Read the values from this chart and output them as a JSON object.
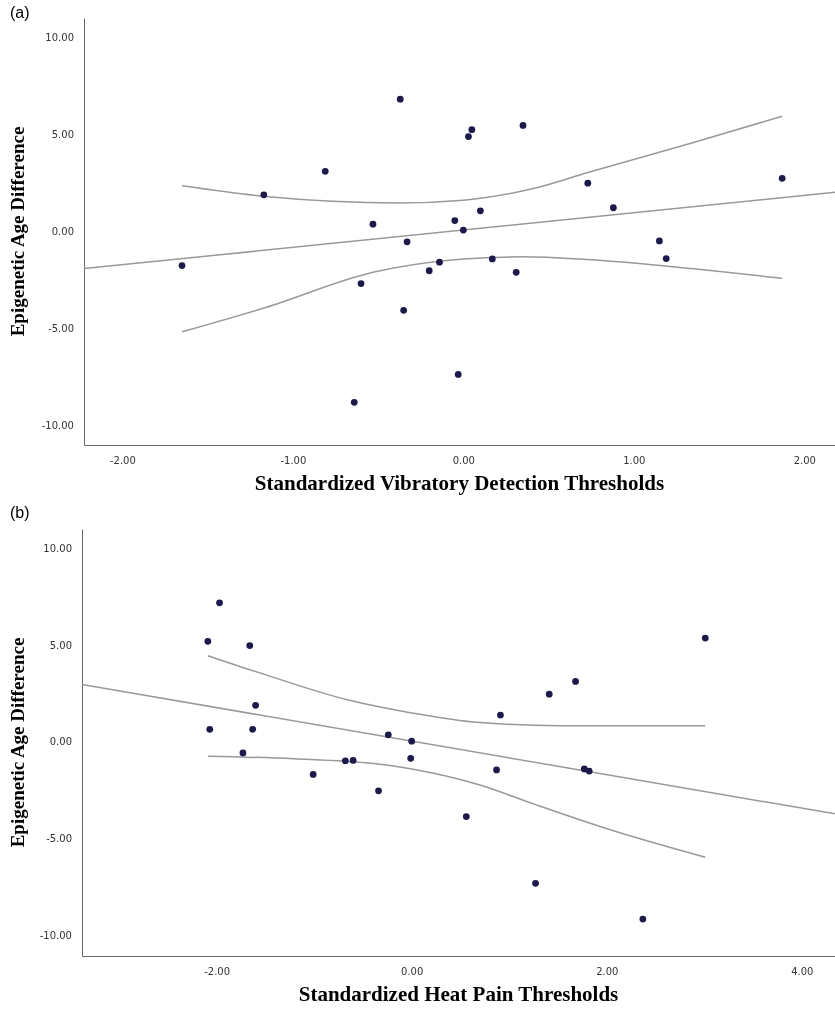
{
  "chart_data": [
    {
      "type": "scatter",
      "title": "(a)",
      "xlabel": "Standardized Vibratory Detection Thresholds",
      "ylabel": "Epigenetic Age Difference",
      "xlim": [
        -2.225,
        2.18
      ],
      "ylim": [
        -11.03,
        11.0
      ],
      "xticks": [
        {
          "value": -2,
          "label": "-2.00"
        },
        {
          "value": -1,
          "label": "-1.00"
        },
        {
          "value": 0,
          "label": "0.00"
        },
        {
          "value": 1,
          "label": "1.00"
        },
        {
          "value": 2,
          "label": "2.00"
        }
      ],
      "yticks": [
        {
          "value": -10,
          "label": "-10.00"
        },
        {
          "value": -5,
          "label": "-5.00"
        },
        {
          "value": 0,
          "label": "0.00"
        },
        {
          "value": 5,
          "label": "5.00"
        },
        {
          "value": 10,
          "label": "10.00"
        }
      ],
      "grid": false,
      "series": [
        {
          "marker": "circle",
          "color": "#1c1a4a",
          "x": [
            -1.65,
            -1.17,
            -0.81,
            -0.53,
            -0.64,
            -0.6,
            -0.37,
            -0.35,
            -0.33,
            -0.2,
            -0.14,
            -0.05,
            -0.03,
            0.0,
            0.03,
            0.05,
            0.1,
            0.17,
            0.31,
            0.35,
            0.73,
            0.88,
            1.15,
            1.19,
            1.87
          ],
          "values": [
            -1.77,
            1.88,
            3.09,
            0.36,
            -8.83,
            -2.7,
            6.81,
            -4.08,
            -0.55,
            -2.04,
            -1.6,
            0.55,
            -7.39,
            0.06,
            4.88,
            5.24,
            1.05,
            -1.43,
            -2.12,
            5.46,
            2.48,
            1.21,
            -0.5,
            -1.41,
            2.73
          ]
        },
        {
          "type": "line",
          "color": "#999999",
          "line_style": "solid",
          "x": [
            -2.225,
            2.18
          ],
          "values": [
            -1.93,
            2.01
          ]
        },
        {
          "type": "line",
          "color": "#999999",
          "line_style": "solid",
          "x": [
            -1.65,
            -1.16,
            -0.375,
            0,
            0.41,
            0.73,
            1.34,
            1.87
          ],
          "values": [
            2.34,
            1.79,
            1.46,
            1.6,
            2.2,
            3.03,
            4.55,
            5.93
          ]
        },
        {
          "type": "line",
          "color": "#999999",
          "line_style": "solid",
          "x": [
            -1.65,
            -1.16,
            -0.53,
            0,
            0.34,
            0.73,
            1.34,
            1.87
          ],
          "values": [
            -5.19,
            -3.94,
            -2.12,
            -1.43,
            -1.32,
            -1.46,
            -1.93,
            -2.43
          ]
        }
      ]
    },
    {
      "type": "scatter",
      "title": "(b)",
      "xlabel": "Standardized Heat Pain Thresholds",
      "ylabel": "Epigenetic Age Difference",
      "xlim": [
        -3.38,
        4.34
      ],
      "ylim": [
        -11.08,
        11.0
      ],
      "xticks": [
        {
          "value": -2,
          "label": "-2.00"
        },
        {
          "value": 0,
          "label": "0.00"
        },
        {
          "value": 2,
          "label": "2.00"
        },
        {
          "value": 4,
          "label": "4.00"
        }
      ],
      "yticks": [
        {
          "value": -10,
          "label": "-10.00"
        },
        {
          "value": -5,
          "label": "-5.00"
        },
        {
          "value": 0,
          "label": "0.00"
        },
        {
          "value": 5,
          "label": "5.00"
        },
        {
          "value": 10,
          "label": "10.00"
        }
      ],
      "grid": false,
      "series": [
        {
          "marker": "circle",
          "color": "#1c1a4a",
          "x": [
            -2.09,
            -2.07,
            -1.97,
            -1.73,
            -1.66,
            -1.63,
            -1.6,
            -1.01,
            -0.68,
            -0.6,
            -0.34,
            -0.24,
            -0.01,
            0.0,
            0.56,
            0.87,
            0.91,
            1.27,
            1.41,
            1.68,
            1.77,
            1.82,
            2.37,
            3.01
          ],
          "values": [
            5.19,
            0.64,
            7.18,
            -0.58,
            4.97,
            0.64,
            1.88,
            -1.69,
            -0.99,
            -0.97,
            -2.54,
            0.36,
            -0.86,
            0.03,
            -3.87,
            -1.46,
            1.38,
            -7.32,
            2.46,
            3.12,
            -1.41,
            -1.52,
            -9.17,
            5.36
          ]
        },
        {
          "type": "line",
          "color": "#999999",
          "line_style": "solid",
          "x": [
            -3.38,
            4.34
          ],
          "values": [
            2.96,
            -3.73
          ]
        },
        {
          "type": "line",
          "color": "#999999",
          "line_style": "solid",
          "x": [
            -2.09,
            -1.48,
            -0.67,
            0,
            0.7,
            1.52,
            3.01
          ],
          "values": [
            4.45,
            3.43,
            2.18,
            1.49,
            0.99,
            0.83,
            0.83
          ]
        },
        {
          "type": "line",
          "color": "#999999",
          "line_style": "solid",
          "x": [
            -2.09,
            -1.21,
            -0.39,
            0,
            0.7,
            1.24,
            2.06,
            3.01
          ],
          "values": [
            -0.75,
            -0.88,
            -1.13,
            -1.41,
            -2.24,
            -3.2,
            -4.59,
            -5.97
          ]
        }
      ]
    }
  ]
}
